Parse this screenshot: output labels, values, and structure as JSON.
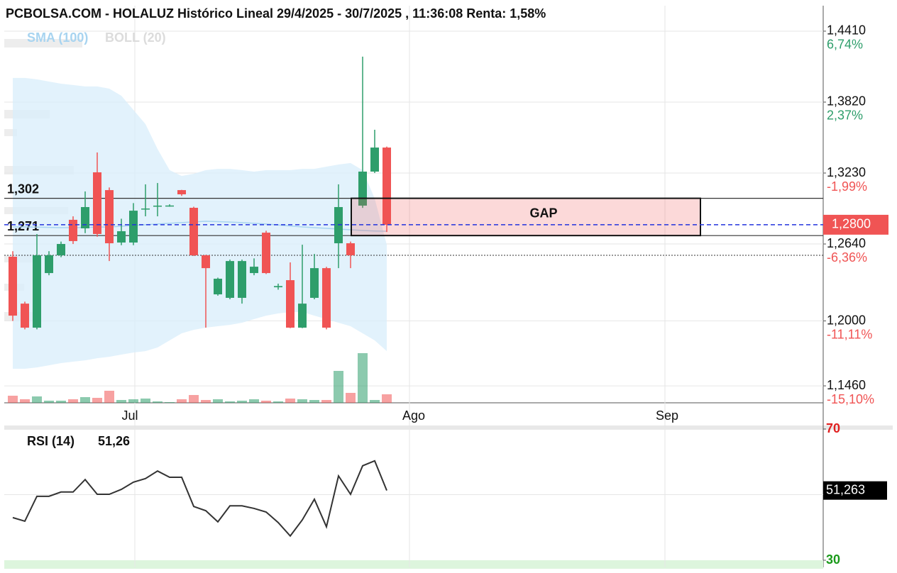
{
  "title": "PCBOLSA.COM - HOLALUZ Histórico Lineal 29/4/2025 - 30/7/2025 , 11:36:08 Renta: 1,58%",
  "chart_data": [
    {
      "type": "candlestick",
      "categories": [
        null,
        null,
        null,
        null,
        null,
        null,
        null,
        null,
        null,
        null,
        null,
        null,
        null,
        null,
        null,
        null,
        null,
        null,
        null,
        null,
        null,
        null,
        null,
        null,
        null,
        null,
        null,
        null,
        null,
        null,
        null,
        null
      ],
      "open": [
        1.2534,
        1.2144,
        1.1944,
        1.2398,
        1.2546,
        1.2841,
        1.277,
        1.3236,
        1.3088,
        1.2652,
        1.2652,
        1.2929,
        1.295,
        1.296,
        1.3088,
        1.2941,
        1.2546,
        1.2221,
        1.2192,
        1.2192,
        1.2398,
        1.2734,
        1.228,
        1.2339,
        1.1944,
        1.2192,
        1.2439,
        1.2646,
        1.2646,
        1.2959,
        1.3242,
        1.3442
      ],
      "high": [
        1.258,
        1.216,
        1.2723,
        1.258,
        1.266,
        1.287,
        1.3077,
        1.3401,
        1.311,
        1.285,
        1.298,
        1.3136,
        1.3147,
        1.297,
        1.309,
        1.295,
        1.255,
        1.236,
        1.251,
        1.251,
        1.252,
        1.275,
        1.231,
        1.2487,
        1.2634,
        1.2557,
        1.245,
        1.3136,
        1.266,
        1.4198,
        1.359,
        1.345
      ],
      "low": [
        1.2,
        1.193,
        1.193,
        1.238,
        1.253,
        1.264,
        1.273,
        1.27,
        1.2498,
        1.263,
        1.263,
        1.287,
        1.287,
        1.295,
        1.304,
        1.254,
        1.1944,
        1.221,
        1.218,
        1.2144,
        1.238,
        1.239,
        1.226,
        1.194,
        1.194,
        1.218,
        1.193,
        1.2439,
        1.2439,
        1.294,
        1.323,
        1.274
      ],
      "close": [
        1.2044,
        1.1944,
        1.2546,
        1.2546,
        1.264,
        1.2664,
        1.2947,
        1.2723,
        1.2646,
        1.2746,
        1.2917,
        1.2935,
        1.2959,
        1.296,
        1.3053,
        1.2546,
        1.2439,
        1.2351,
        1.2498,
        1.2498,
        1.2451,
        1.2398,
        1.229,
        1.1944,
        1.2144,
        1.2439,
        1.1944,
        1.2947,
        1.2546,
        1.3242,
        1.3442,
        1.28
      ],
      "volume": [
        10,
        5,
        9,
        3,
        3,
        5,
        8,
        7,
        17,
        4,
        5,
        6,
        2,
        1,
        5,
        11,
        4,
        5,
        2,
        3,
        5,
        3,
        2,
        6,
        5,
        4,
        4,
        45,
        14,
        70,
        4,
        12
      ],
      "up_color": "#2e9e6b",
      "down_color": "#f05454",
      "series": [
        {
          "name": "SMA (100)",
          "color": "#a8d4f0",
          "values": [
            1.2782,
            1.2782,
            1.278,
            1.2778,
            1.2776,
            1.2776,
            1.2778,
            1.278,
            1.2782,
            1.2788,
            1.2794,
            1.28,
            1.2806,
            1.2812,
            1.2818,
            1.2824,
            1.2829,
            1.2826,
            1.2822,
            1.2818,
            1.2812,
            1.2806,
            1.2798,
            1.279,
            1.2782,
            1.2776,
            1.277,
            1.2764,
            1.2758,
            1.2752,
            1.2748,
            1.2746
          ]
        },
        {
          "name": "BOLL (20)",
          "color": "#d8edfb",
          "upper": [
            1.4021,
            1.4021,
            1.4009,
            1.3991,
            1.3973,
            1.3962,
            1.395,
            1.395,
            1.3932,
            1.3873,
            1.3755,
            1.3637,
            1.343,
            1.3254,
            1.3206,
            1.3224,
            1.3254,
            1.3265,
            1.3265,
            1.3254,
            1.3242,
            1.3254,
            1.3254,
            1.3254,
            1.3265,
            1.3265,
            1.3283,
            1.3301,
            1.3313,
            1.3254,
            1.3018,
            1.2634
          ],
          "lower": [
            1.1602,
            1.1602,
            1.1613,
            1.1631,
            1.1649,
            1.1661,
            1.1672,
            1.169,
            1.1702,
            1.172,
            1.1737,
            1.1749,
            1.1779,
            1.1838,
            1.1897,
            1.1926,
            1.1944,
            1.1956,
            1.1967,
            1.1985,
            1.2015,
            1.2044,
            1.2062,
            1.2074,
            1.2074,
            1.2044,
            1.2015,
            1.1985,
            1.1956,
            1.1897,
            1.1838,
            1.1749
          ]
        }
      ],
      "ylim": [
        1.1319,
        1.4622
      ],
      "yticks": [
        {
          "value": 1.441,
          "label": "1,4410"
        },
        {
          "value": 1.382,
          "label": "1,3820"
        },
        {
          "value": 1.323,
          "label": "1,3230"
        },
        {
          "value": 1.264,
          "label": "1,2640"
        },
        {
          "value": 1.2,
          "label": "1,2000"
        },
        {
          "value": 1.146,
          "label": "1,1460"
        }
      ],
      "ytick_pct": [
        "6,74%",
        "2,37%",
        "-1,99%",
        "-6,36%",
        "-11,11%",
        "-15,10%"
      ],
      "x_labels": [
        "Jul",
        "Ago",
        "Sep"
      ],
      "levels": [
        {
          "value": 1.302,
          "label": "1,302"
        },
        {
          "value": 1.271,
          "label": "1,271"
        }
      ],
      "dotted_level": 1.2546,
      "last_price": {
        "value": 1.28,
        "label": "1,2800"
      },
      "gap": {
        "label": "GAP",
        "top": 1.302,
        "bottom": 1.271
      },
      "grid": true
    },
    {
      "type": "line",
      "title": "RSI (14)",
      "last_label": "51,26",
      "values": [
        43.0,
        41.9,
        49.5,
        49.5,
        50.8,
        50.8,
        54.6,
        50.1,
        50.1,
        51.6,
        53.8,
        54.9,
        57.2,
        55.3,
        55.3,
        46.4,
        45.1,
        41.7,
        46.6,
        46.6,
        45.8,
        44.7,
        41.5,
        37.4,
        42.3,
        48.6,
        40.2,
        55.7,
        50.1,
        58.8,
        60.3,
        51.263
      ],
      "value_labels_last": "51,263",
      "color": "#333333",
      "ylim": [
        30,
        70
      ],
      "yticks": [
        30,
        70
      ],
      "grid_lines": [
        50
      ]
    }
  ]
}
